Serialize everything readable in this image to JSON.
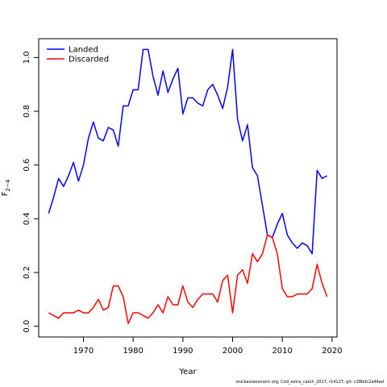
{
  "chart_data": {
    "type": "line",
    "xlabel": "Year",
    "ylabel": "F",
    "ylabel_subscript": "2−4",
    "xlim": [
      1961,
      2021
    ],
    "ylim": [
      -0.04,
      1.07
    ],
    "xticks": [
      1970,
      1980,
      1990,
      2000,
      2010,
      2020
    ],
    "yticks": [
      0.0,
      0.2,
      0.4,
      0.6,
      0.8,
      1.0
    ],
    "ytick_labels": [
      "0.0",
      "0.2",
      "0.4",
      "0.6",
      "0.8",
      "1.0"
    ],
    "legend_position": "top-left",
    "x": [
      1963,
      1964,
      1965,
      1966,
      1967,
      1968,
      1969,
      1970,
      1971,
      1972,
      1973,
      1974,
      1975,
      1976,
      1977,
      1978,
      1979,
      1980,
      1981,
      1982,
      1983,
      1984,
      1985,
      1986,
      1987,
      1988,
      1989,
      1990,
      1991,
      1992,
      1993,
      1994,
      1995,
      1996,
      1997,
      1998,
      1999,
      2000,
      2001,
      2002,
      2003,
      2004,
      2005,
      2006,
      2007,
      2008,
      2009,
      2010,
      2011,
      2012,
      2013,
      2014,
      2015,
      2016,
      2017,
      2018,
      2019
    ],
    "series": [
      {
        "name": "Landed",
        "color": "#0000ff",
        "values": [
          0.42,
          0.48,
          0.55,
          0.52,
          0.56,
          0.61,
          0.54,
          0.6,
          0.7,
          0.76,
          0.7,
          0.69,
          0.74,
          0.73,
          0.67,
          0.82,
          0.82,
          0.88,
          0.88,
          1.03,
          1.03,
          0.93,
          0.86,
          0.95,
          0.87,
          0.92,
          0.96,
          0.79,
          0.85,
          0.85,
          0.83,
          0.82,
          0.88,
          0.9,
          0.86,
          0.81,
          0.89,
          1.03,
          0.77,
          0.69,
          0.75,
          0.59,
          0.56,
          0.45,
          0.34,
          0.33,
          0.38,
          0.42,
          0.34,
          0.31,
          0.29,
          0.31,
          0.3,
          0.27,
          0.58,
          0.55,
          0.56
        ]
      },
      {
        "name": "Discarded",
        "color": "#ff0000",
        "values": [
          0.05,
          0.04,
          0.03,
          0.05,
          0.05,
          0.05,
          0.06,
          0.05,
          0.05,
          0.07,
          0.1,
          0.06,
          0.07,
          0.15,
          0.15,
          0.11,
          0.01,
          0.05,
          0.05,
          0.04,
          0.03,
          0.05,
          0.08,
          0.05,
          0.11,
          0.08,
          0.08,
          0.15,
          0.09,
          0.07,
          0.1,
          0.12,
          0.12,
          0.12,
          0.09,
          0.17,
          0.19,
          0.05,
          0.19,
          0.21,
          0.16,
          0.27,
          0.24,
          0.27,
          0.34,
          0.33,
          0.27,
          0.14,
          0.11,
          0.11,
          0.12,
          0.12,
          0.12,
          0.14,
          0.23,
          0.16,
          0.11
        ]
      }
    ]
  },
  "footnote": "stockassessment.org, Cod_extra_catch_2017, r14127, git: c28bdc2a44ad"
}
